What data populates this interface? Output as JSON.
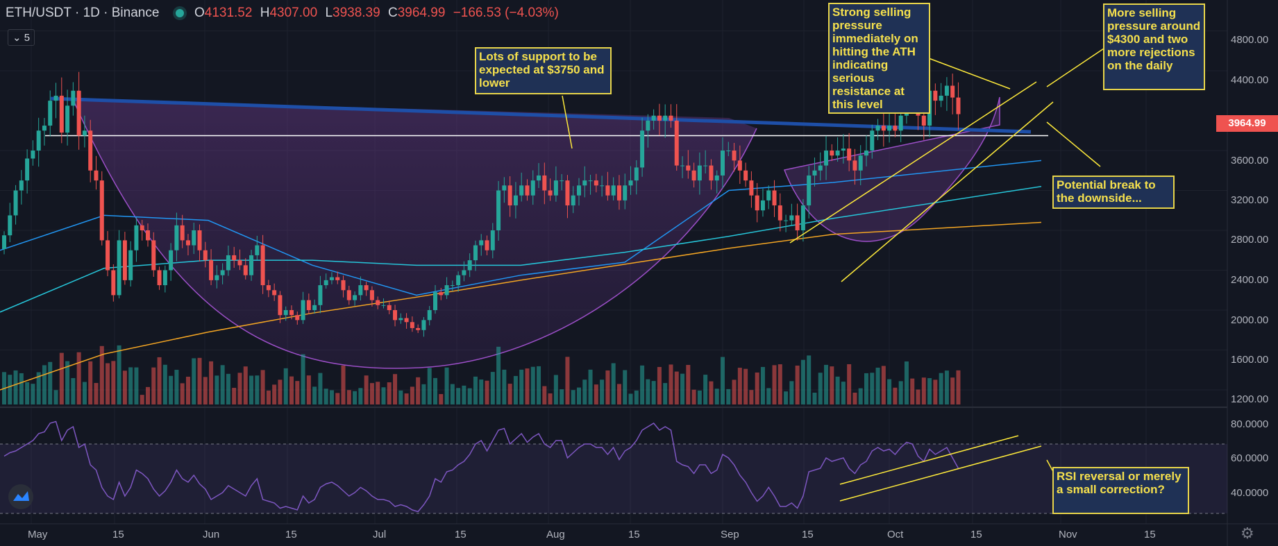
{
  "header": {
    "symbol": "ETH/USDT",
    "interval": "1D",
    "exchange": "Binance",
    "open_label": "O",
    "open": "4131.52",
    "high_label": "H",
    "high": "4307.00",
    "low_label": "L",
    "low": "3938.39",
    "close_label": "C",
    "close": "3964.99",
    "change": "−166.53 (−4.03%)",
    "indicator_count": "5"
  },
  "price_tag": "3964.99",
  "annotations": {
    "support": "Lots of support to be expected at $3750 and lower",
    "ath": "Strong selling pressure immediately on hitting the ATH indicating serious resistance at this level",
    "more_selling": "More selling pressure around $4300 and two more rejections on the daily",
    "break": "Potential break to the downside...",
    "rsi": "RSI reversal or merely a small correction?"
  },
  "colors": {
    "background": "#131722",
    "up": "#26a69a",
    "down": "#ef5350",
    "note_border": "#e8d54a",
    "note_text": "#f5e04d",
    "note_bg": "#1f3155",
    "rsi_line": "#7e57c2",
    "ma_fast": "#2196f3",
    "ma_mid": "#26c6da",
    "ma_slow": "#f5a623",
    "trendline": "#1e4fa8",
    "channel": "#ffeb3b"
  },
  "icons": {
    "status": "live-dot-icon",
    "logo": "tradingview-logo-icon",
    "settings": "gear-icon",
    "collapse": "chevron-down-icon"
  },
  "chart_data": {
    "type": "candlestick",
    "title": "ETH/USDT · 1D · Binance",
    "price_axis": {
      "ticks": [
        "4800.00",
        "4400.00",
        "3964.99",
        "3600.00",
        "3200.00",
        "2800.00",
        "2400.00",
        "2000.00",
        "1600.00",
        "1200.00"
      ],
      "range": [
        1150,
        4950
      ]
    },
    "rsi_axis": {
      "ticks": [
        "80.0000",
        "60.0000",
        "40.0000"
      ],
      "range": [
        22,
        88
      ],
      "bands": [
        30,
        70
      ]
    },
    "time_axis": {
      "ticks": [
        "May",
        "15",
        "Jun",
        "15",
        "Jul",
        "15",
        "Aug",
        "15",
        "Sep",
        "15",
        "Oct",
        "15",
        "Nov",
        "15"
      ]
    },
    "start_date": "2021-04-29",
    "closes": [
      2750,
      2950,
      3200,
      3300,
      3520,
      3600,
      3800,
      3850,
      4100,
      4150,
      3780,
      4050,
      4200,
      3750,
      3800,
      3400,
      3300,
      2700,
      2400,
      2150,
      2700,
      2300,
      2600,
      2850,
      2800,
      2700,
      2400,
      2250,
      2400,
      2600,
      2850,
      2700,
      2650,
      2800,
      2600,
      2500,
      2300,
      2350,
      2400,
      2550,
      2500,
      2450,
      2350,
      2550,
      2650,
      2250,
      2200,
      2150,
      1950,
      2000,
      1950,
      1900,
      2100,
      2000,
      2050,
      2250,
      2300,
      2330,
      2300,
      2200,
      2100,
      2150,
      2250,
      2200,
      2100,
      2050,
      2050,
      2000,
      1900,
      1920,
      1880,
      1820,
      1800,
      1900,
      2000,
      2180,
      2150,
      2250,
      2250,
      2350,
      2400,
      2500,
      2650,
      2700,
      2600,
      2800,
      3200,
      3250,
      3050,
      3150,
      3250,
      3150,
      3300,
      3350,
      3200,
      3150,
      3300,
      3300,
      3050,
      3150,
      3250,
      3300,
      3300,
      3250,
      3250,
      3150,
      3250,
      3100,
      3250,
      3300,
      3430,
      3800,
      3900,
      3950,
      3900,
      3950,
      3900,
      3450,
      3450,
      3400,
      3300,
      3450,
      3450,
      3300,
      3350,
      3600,
      3600,
      3500,
      3400,
      3300,
      3150,
      3000,
      3100,
      3200,
      3050,
      2900,
      2900,
      2950,
      2800,
      3050,
      3350,
      3400,
      3450,
      3600,
      3550,
      3600,
      3620,
      3500,
      3400,
      3550,
      3600,
      3800,
      3850,
      3800,
      3850,
      3800,
      3950,
      4150,
      4100,
      3950,
      3850,
      4200,
      4100,
      4150,
      4250,
      4131.52,
      3964.99
    ],
    "annotated_levels": [
      {
        "name": "support",
        "value": 3750
      }
    ],
    "moving_averages": [
      {
        "name": "MA fast",
        "color": "#2196f3",
        "values": [
          2600,
          2950,
          2900,
          2450,
          2150,
          2350,
          2480,
          3200,
          3280,
          3500
        ]
      },
      {
        "name": "MA mid",
        "color": "#26c6da",
        "values": [
          1980,
          2420,
          2500,
          2500,
          2450,
          2450,
          2580,
          2740,
          2920,
          3240
        ]
      },
      {
        "name": "MA slow",
        "color": "#f5a623",
        "values": [
          1200,
          1560,
          1780,
          1970,
          2130,
          2300,
          2460,
          2620,
          2760,
          2880
        ]
      }
    ],
    "rsi": [
      63,
      65,
      66,
      68,
      70,
      72,
      76,
      77,
      82,
      83,
      72,
      78,
      80,
      68,
      70,
      58,
      55,
      45,
      40,
      38,
      48,
      40,
      45,
      55,
      53,
      50,
      44,
      40,
      43,
      48,
      55,
      50,
      48,
      52,
      47,
      44,
      38,
      40,
      42,
      46,
      44,
      42,
      40,
      46,
      50,
      38,
      37,
      36,
      33,
      34,
      33,
      32,
      40,
      36,
      38,
      45,
      47,
      48,
      46,
      43,
      40,
      42,
      45,
      43,
      40,
      38,
      38,
      37,
      34,
      35,
      34,
      32,
      31,
      35,
      40,
      50,
      48,
      54,
      55,
      58,
      60,
      64,
      70,
      72,
      66,
      72,
      78,
      79,
      70,
      73,
      76,
      71,
      74,
      76,
      70,
      68,
      72,
      72,
      62,
      65,
      68,
      70,
      70,
      68,
      68,
      64,
      68,
      61,
      66,
      68,
      72,
      78,
      80,
      82,
      78,
      80,
      78,
      60,
      58,
      57,
      53,
      58,
      58,
      53,
      55,
      64,
      62,
      58,
      52,
      48,
      42,
      37,
      40,
      45,
      40,
      34,
      34,
      36,
      33,
      40,
      54,
      55,
      56,
      62,
      60,
      61,
      62,
      56,
      53,
      58,
      60,
      66,
      68,
      66,
      67,
      64,
      68,
      71,
      70,
      63,
      60,
      67,
      64,
      66,
      68,
      62,
      56
    ]
  },
  "axis_labels": {
    "p4800": "4800.00",
    "p4400": "4400.00",
    "p3600": "3600.00",
    "p3200": "3200.00",
    "p2800": "2800.00",
    "p2400": "2400.00",
    "p2000": "2000.00",
    "p1600": "1600.00",
    "p1200": "1200.00",
    "r80": "80.0000",
    "r60": "60.0000",
    "r40": "40.0000",
    "t_may": "May",
    "t_may15": "15",
    "t_jun": "Jun",
    "t_jun15": "15",
    "t_jul": "Jul",
    "t_jul15": "15",
    "t_aug": "Aug",
    "t_aug15": "15",
    "t_sep": "Sep",
    "t_sep15": "15",
    "t_oct": "Oct",
    "t_oct15": "15",
    "t_nov": "Nov",
    "t_nov15": "15"
  }
}
